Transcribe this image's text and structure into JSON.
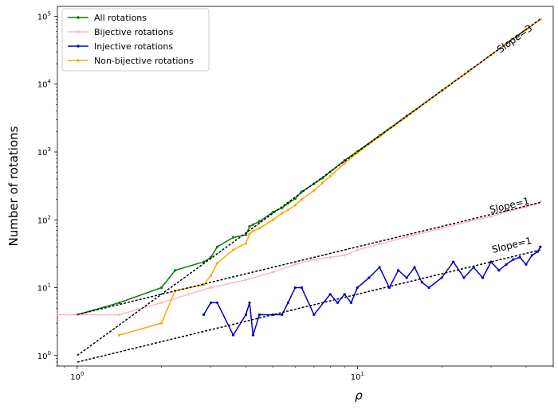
{
  "chart_data": {
    "type": "line",
    "title": "",
    "xlabel": "ρ",
    "ylabel": "Number of rotations",
    "xscale": "log",
    "yscale": "log",
    "xlim": [
      0.85,
      50
    ],
    "ylim": [
      0.7,
      140000
    ],
    "grid": false,
    "legend_position": "top-left",
    "xticks": [
      {
        "base": "10",
        "exp": "0",
        "value": 1
      },
      {
        "base": "10",
        "exp": "1",
        "value": 10
      }
    ],
    "yticks": [
      {
        "base": "10",
        "exp": "0",
        "value": 1
      },
      {
        "base": "10",
        "exp": "1",
        "value": 10
      },
      {
        "base": "10",
        "exp": "2",
        "value": 100
      },
      {
        "base": "10",
        "exp": "3",
        "value": 1000
      },
      {
        "base": "10",
        "exp": "4",
        "value": 10000
      },
      {
        "base": "10",
        "exp": "5",
        "value": 100000
      }
    ],
    "series": [
      {
        "name": "All rotations",
        "color": "#008000",
        "x": [
          1,
          1.414,
          2,
          2.236,
          2.828,
          3,
          3.162,
          3.606,
          4,
          4.123,
          4.243,
          4.472,
          5,
          5.385,
          5.657,
          6,
          6.325,
          7,
          7.5,
          8,
          9,
          10,
          12,
          15,
          20,
          25,
          30,
          35,
          40,
          45
        ],
        "values": [
          4,
          6,
          10,
          18,
          24,
          28,
          40,
          55,
          60,
          80,
          85,
          95,
          130,
          150,
          175,
          205,
          260,
          340,
          410,
          510,
          750,
          1020,
          1750,
          3400,
          8000,
          15600,
          27000,
          43000,
          64000,
          90000
        ]
      },
      {
        "name": "Bijective rotations",
        "color": "#ffb6c1",
        "x": [
          0.85,
          1,
          1.414,
          2,
          2.5,
          3,
          4,
          5,
          6,
          7,
          8,
          9,
          10,
          12,
          15,
          20,
          25,
          30,
          35,
          40,
          45
        ],
        "values": [
          4,
          4,
          4,
          6,
          8,
          10,
          13,
          17,
          22,
          26,
          28,
          30,
          36,
          44,
          56,
          75,
          95,
          112,
          135,
          155,
          185
        ]
      },
      {
        "name": "Injective rotations",
        "color": "#0000cd",
        "x": [
          2.828,
          3,
          3.162,
          3.606,
          4,
          4.123,
          4.243,
          4.472,
          5,
          5.385,
          5.657,
          6,
          6.325,
          7,
          8,
          8.5,
          9,
          9.5,
          10,
          11,
          12,
          13,
          14,
          15,
          16,
          17,
          18,
          20,
          22,
          24,
          26,
          28,
          30,
          32,
          34,
          36,
          38,
          40,
          42,
          44,
          45
        ],
        "values": [
          4,
          6,
          6,
          2,
          4,
          6,
          2,
          4,
          4,
          4,
          6,
          10,
          10,
          4,
          8,
          6,
          8,
          6,
          10,
          14,
          20,
          10,
          18,
          14,
          20,
          12,
          10,
          14,
          24,
          14,
          20,
          14,
          24,
          18,
          22,
          26,
          28,
          22,
          30,
          34,
          40
        ]
      },
      {
        "name": "Non-bijective rotations",
        "color": "#ffa500",
        "x": [
          1.414,
          2,
          2.236,
          2.828,
          3,
          3.162,
          3.606,
          4,
          4.123,
          4.243,
          4.472,
          5,
          5.385,
          5.657,
          6,
          6.325,
          7,
          7.5,
          8,
          9,
          10,
          12,
          15,
          20,
          25,
          30,
          35,
          40,
          45
        ],
        "values": [
          2,
          3,
          9,
          11,
          15,
          23,
          36,
          45,
          62,
          68,
          75,
          100,
          125,
          140,
          165,
          200,
          270,
          350,
          440,
          680,
          970,
          1680,
          3300,
          7900,
          15500,
          26900,
          42900,
          63800,
          89800
        ]
      }
    ],
    "reference_lines": [
      {
        "label": "Slope=3",
        "slope": 3,
        "x": [
          1,
          45
        ],
        "values": [
          1,
          91125
        ]
      },
      {
        "label": "Slope=1",
        "slope": 1,
        "x": [
          1,
          45
        ],
        "values": [
          4,
          180
        ]
      },
      {
        "label": "Slope=1",
        "slope": 1,
        "x": [
          1,
          45
        ],
        "values": [
          0.8,
          36
        ]
      }
    ]
  }
}
